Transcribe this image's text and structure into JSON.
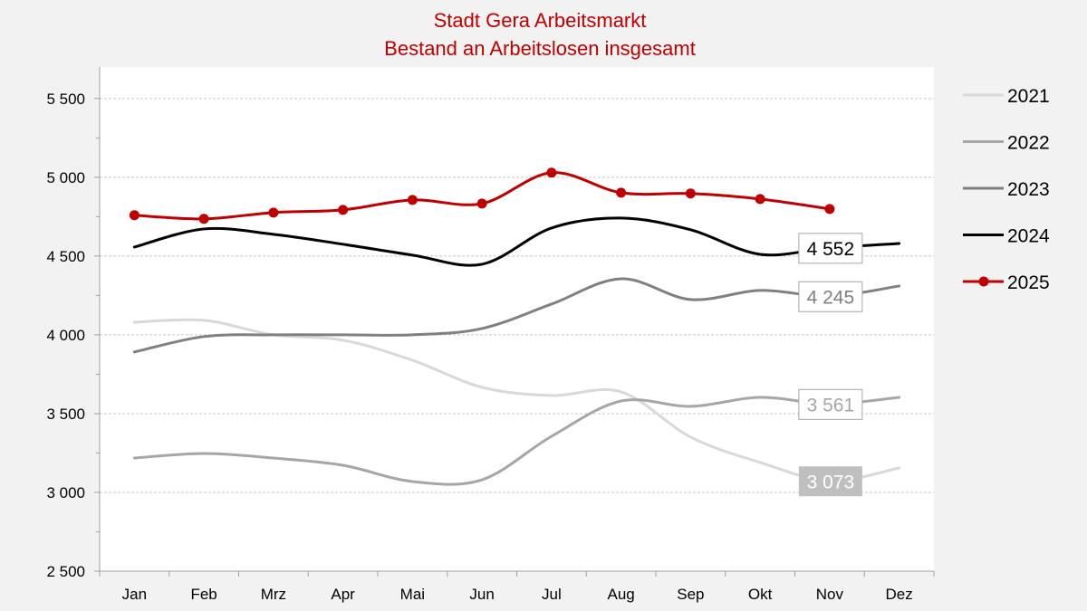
{
  "chart_data": {
    "type": "line",
    "title": "Stadt Gera Arbeitsmarkt",
    "subtitle": "Bestand an Arbeitslosen insgesamt",
    "title_color": "#c00000",
    "categories": [
      "Jan",
      "Feb",
      "Mrz",
      "Apr",
      "Mai",
      "Jun",
      "Jul",
      "Aug",
      "Sep",
      "Okt",
      "Nov",
      "Dez"
    ],
    "ylim": [
      2500,
      5700
    ],
    "yticks": [
      2500,
      3000,
      3500,
      4000,
      4500,
      5000,
      5500
    ],
    "ytick_labels": [
      "2 500",
      "3 000",
      "3 500",
      "4 000",
      "4 500",
      "5 000",
      "5 500"
    ],
    "grid": true,
    "smooth": true,
    "legend": "right",
    "series": [
      {
        "name": "2021",
        "color": "#d9d9d9",
        "markers": false,
        "values": [
          4080,
          4092,
          4000,
          3966,
          3839,
          3667,
          3615,
          3638,
          3351,
          3190,
          3073,
          3155
        ],
        "label": {
          "text": "3 073",
          "index": 10,
          "style": "filled",
          "bg": "#bfbfbf",
          "fg": "#ffffff"
        }
      },
      {
        "name": "2022",
        "color": "#a6a6a6",
        "markers": false,
        "values": [
          3218,
          3247,
          3218,
          3172,
          3069,
          3080,
          3356,
          3580,
          3546,
          3603,
          3561,
          3603
        ],
        "label": {
          "text": "3 561",
          "index": 10,
          "style": "boxed",
          "bg": "#ffffff",
          "fg": "#a6a6a6"
        }
      },
      {
        "name": "2023",
        "color": "#808080",
        "markers": false,
        "values": [
          3891,
          3989,
          4000,
          4000,
          4000,
          4040,
          4195,
          4356,
          4224,
          4282,
          4245,
          4310
        ],
        "label": {
          "text": "4 245",
          "index": 10,
          "style": "boxed",
          "bg": "#ffffff",
          "fg": "#808080"
        }
      },
      {
        "name": "2024",
        "color": "#000000",
        "markers": false,
        "values": [
          4557,
          4672,
          4638,
          4575,
          4506,
          4448,
          4678,
          4741,
          4667,
          4511,
          4552,
          4580
        ],
        "label": {
          "text": "4 552",
          "index": 10,
          "style": "boxed",
          "bg": "#ffffff",
          "fg": "#000000"
        }
      },
      {
        "name": "2025",
        "color": "#c00000",
        "markers": true,
        "values": [
          4759,
          4736,
          4776,
          4793,
          4856,
          4833,
          5029,
          4902,
          4897,
          4862,
          4799,
          null
        ]
      }
    ]
  }
}
